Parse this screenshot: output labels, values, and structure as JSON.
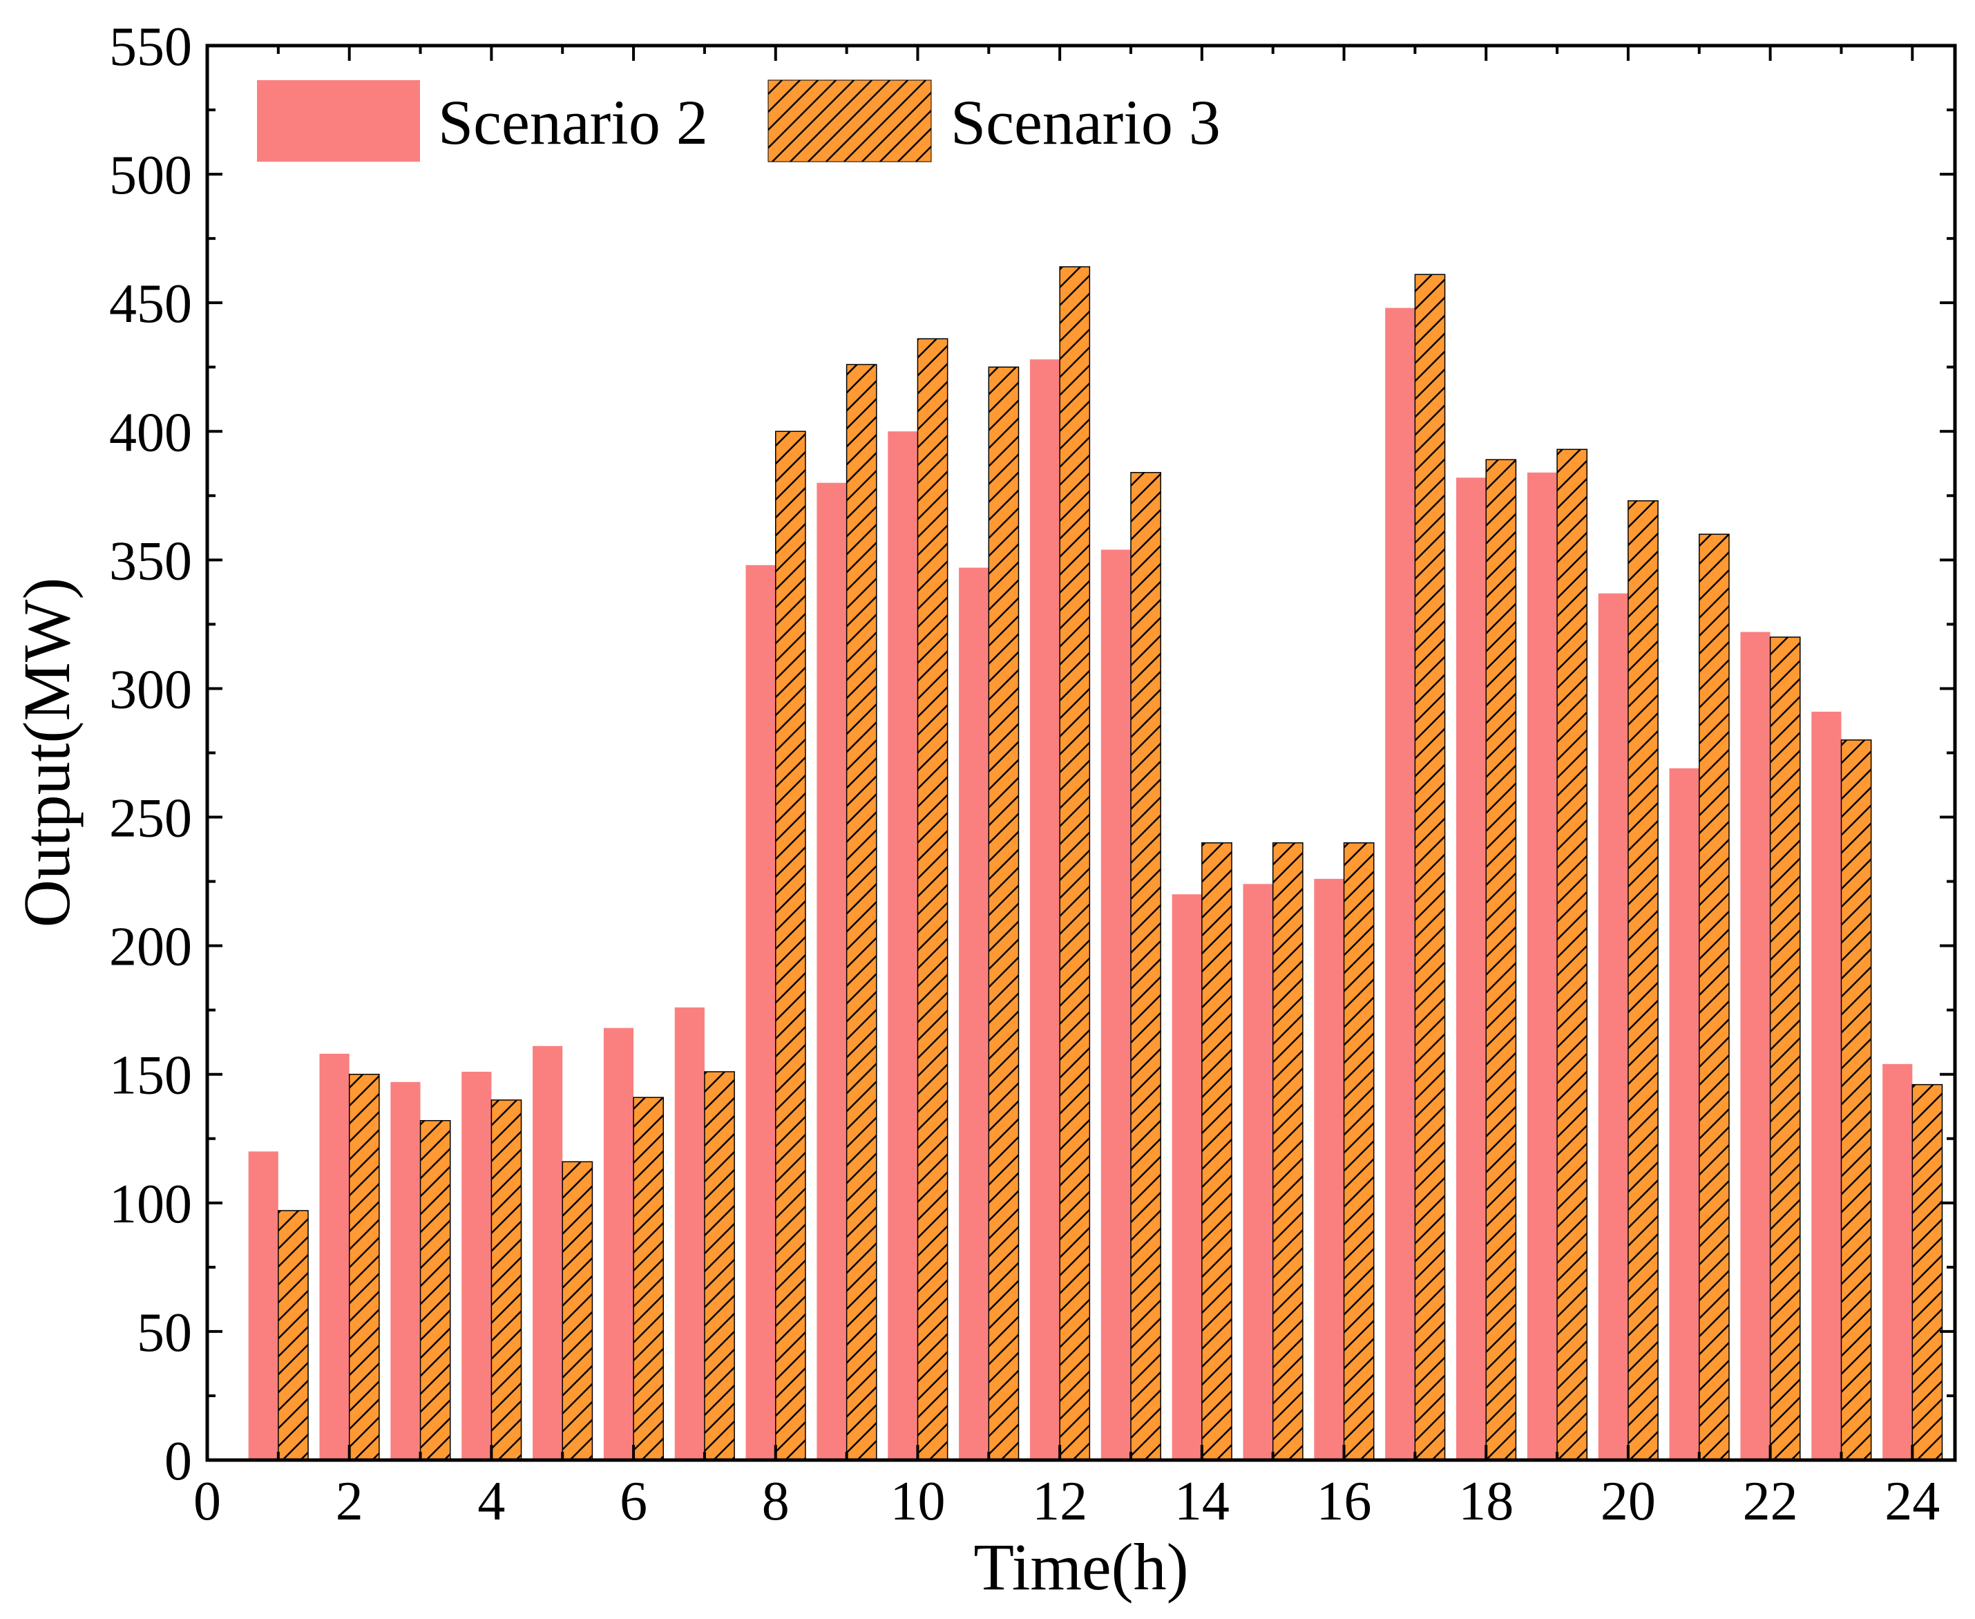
{
  "chart_data": {
    "type": "bar",
    "xlabel": "Time(h)",
    "ylabel": "Output(MW)",
    "xlim": [
      0,
      24.6
    ],
    "ylim": [
      0,
      550
    ],
    "x_ticks": [
      0,
      2,
      4,
      6,
      8,
      10,
      12,
      14,
      16,
      18,
      20,
      22,
      24
    ],
    "x_tick_labels": [
      "0",
      "2",
      "4",
      "6",
      "8",
      "10",
      "12",
      "14",
      "16",
      "18",
      "20",
      "22",
      "24"
    ],
    "y_ticks": [
      0,
      50,
      100,
      150,
      200,
      250,
      300,
      350,
      400,
      450,
      500,
      550
    ],
    "y_tick_labels": [
      "0",
      "50",
      "100",
      "150",
      "200",
      "250",
      "300",
      "350",
      "400",
      "450",
      "500",
      "550"
    ],
    "categories": [
      1,
      2,
      3,
      4,
      5,
      6,
      7,
      8,
      9,
      10,
      11,
      12,
      13,
      14,
      15,
      16,
      17,
      18,
      19,
      20,
      21,
      22,
      23,
      24
    ],
    "legend_position": "top-left",
    "series": [
      {
        "name": "Scenario 2",
        "color": "#fa8080",
        "pattern": "solid",
        "values": [
          120,
          158,
          147,
          151,
          161,
          168,
          176,
          348,
          380,
          400,
          347,
          428,
          354,
          220,
          224,
          226,
          448,
          382,
          384,
          337,
          269,
          322,
          291,
          154
        ]
      },
      {
        "name": "Scenario 3",
        "color": "#ff9933",
        "pattern": "hatched",
        "values": [
          97,
          150,
          132,
          140,
          116,
          141,
          151,
          400,
          426,
          436,
          425,
          464,
          384,
          240,
          240,
          240,
          461,
          389,
          393,
          373,
          360,
          320,
          280,
          146
        ]
      }
    ]
  }
}
